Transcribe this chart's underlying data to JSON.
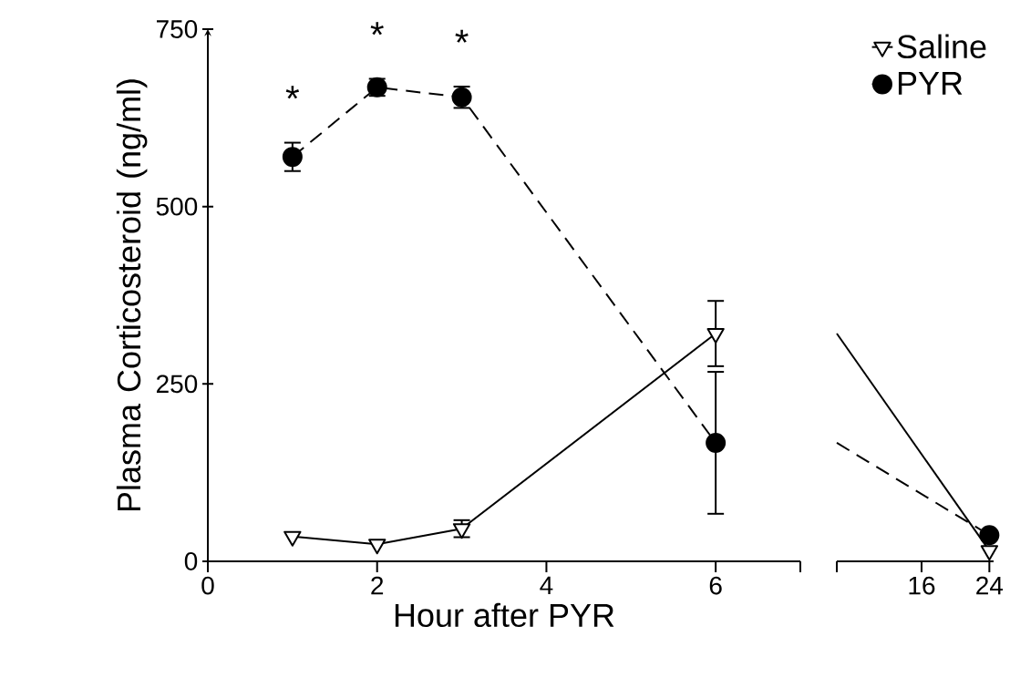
{
  "chart_data": [
    {
      "type": "line",
      "xlabel": "Hour after PYR",
      "ylabel": "Plasma Corticosteroid (ng/ml)",
      "xlim": [
        0,
        7
      ],
      "ylim": [
        0,
        750
      ],
      "xticks": [
        0,
        2,
        4,
        6,
        {
          "value": 7,
          "label": null
        }
      ],
      "yticks": [
        0,
        250,
        500,
        750
      ],
      "annotations": [
        "*",
        "*",
        "*"
      ],
      "series": [
        {
          "color": "#000000",
          "x": [
            1,
            2,
            3,
            6
          ],
          "values": [
            35,
            24,
            46,
            321
          ],
          "errors": [
            null,
            null,
            12,
            46
          ],
          "marker": "triangle",
          "line_style": "solid"
        },
        {
          "color": "#000000",
          "x": [
            1,
            2,
            3,
            6
          ],
          "values": [
            570,
            668,
            654,
            167
          ],
          "errors": [
            20,
            12,
            15,
            100
          ],
          "marker": "circle",
          "line_style": "dashed"
        }
      ]
    },
    {
      "type": "line",
      "xlim": [
        6,
        24.5
      ],
      "ylim": [
        0,
        750
      ],
      "xticks": [
        {
          "value": 6,
          "label": null
        },
        16,
        24
      ],
      "tick_labels": "x",
      "legend": "top right",
      "series": [
        {
          "name": "Saline",
          "color": "#000000",
          "x": [
            6,
            24
          ],
          "values": [
            321,
            15
          ],
          "marker": "triangle",
          "line_style": "solid"
        },
        {
          "name": "PYR",
          "color": "#000000",
          "x": [
            6,
            24
          ],
          "values": [
            167,
            37
          ],
          "marker": "circle",
          "line_style": "dashed"
        }
      ]
    }
  ]
}
